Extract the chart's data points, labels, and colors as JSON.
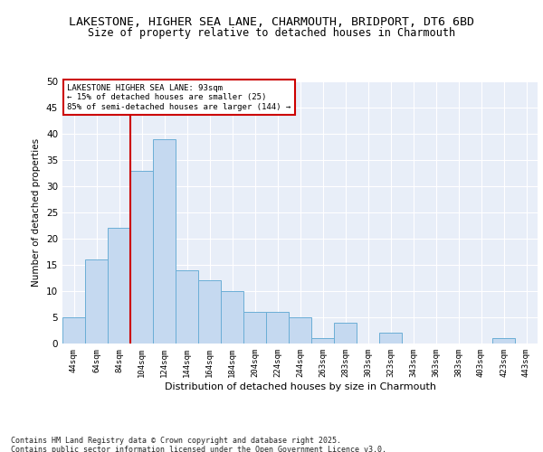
{
  "title_line1": "LAKESTONE, HIGHER SEA LANE, CHARMOUTH, BRIDPORT, DT6 6BD",
  "title_line2": "Size of property relative to detached houses in Charmouth",
  "xlabel": "Distribution of detached houses by size in Charmouth",
  "ylabel": "Number of detached properties",
  "bar_labels": [
    "44sqm",
    "64sqm",
    "84sqm",
    "104sqm",
    "124sqm",
    "144sqm",
    "164sqm",
    "184sqm",
    "204sqm",
    "224sqm",
    "244sqm",
    "263sqm",
    "283sqm",
    "303sqm",
    "323sqm",
    "343sqm",
    "363sqm",
    "383sqm",
    "403sqm",
    "423sqm",
    "443sqm"
  ],
  "bar_values": [
    5,
    16,
    22,
    33,
    39,
    14,
    12,
    10,
    6,
    6,
    5,
    1,
    4,
    0,
    2,
    0,
    0,
    0,
    0,
    1,
    0
  ],
  "bar_color": "#c5d9f0",
  "bar_edge_color": "#6baed6",
  "vline_color": "#cc0000",
  "annotation_text": "LAKESTONE HIGHER SEA LANE: 93sqm\n← 15% of detached houses are smaller (25)\n85% of semi-detached houses are larger (144) →",
  "annotation_box_color": "#cc0000",
  "ylim": [
    0,
    50
  ],
  "yticks": [
    0,
    5,
    10,
    15,
    20,
    25,
    30,
    35,
    40,
    45,
    50
  ],
  "bg_color": "#e8eef8",
  "grid_color": "#ffffff",
  "footer_text": "Contains HM Land Registry data © Crown copyright and database right 2025.\nContains public sector information licensed under the Open Government Licence v3.0.",
  "title_fontsize": 9.5,
  "subtitle_fontsize": 8.5
}
